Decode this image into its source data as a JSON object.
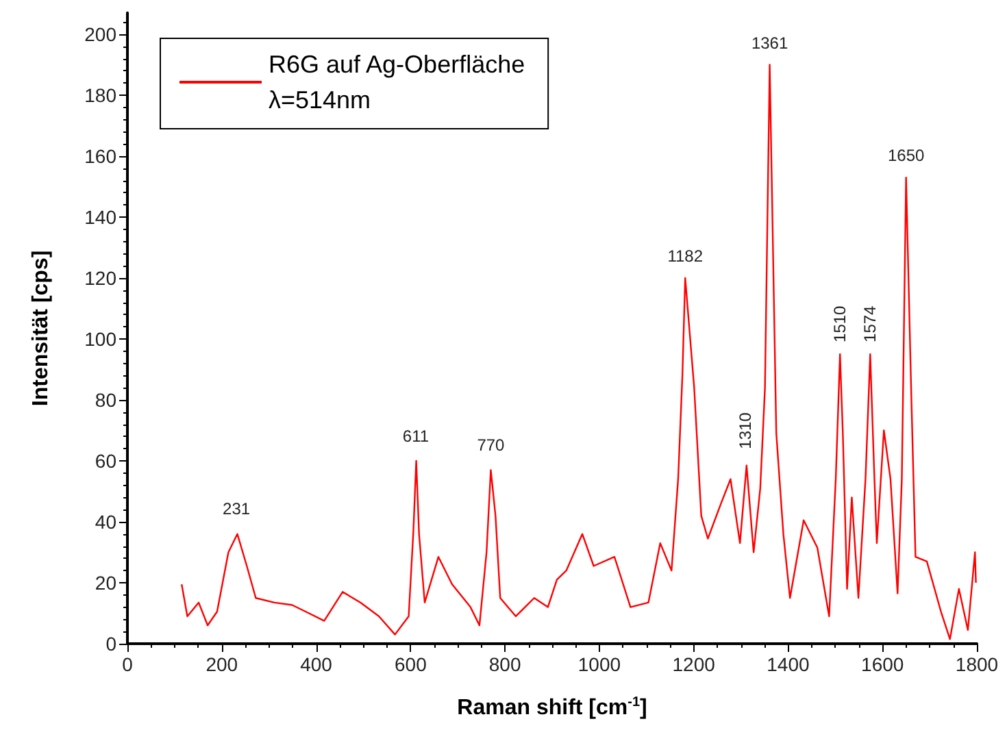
{
  "chart_data": {
    "type": "line",
    "xlabel": "Raman shift [cm$^{-1}$]",
    "ylabel": "Intensität [cps]",
    "xlim": [
      0,
      1800
    ],
    "ylim": [
      0,
      207
    ],
    "xticks": [
      0,
      200,
      400,
      600,
      800,
      1000,
      1200,
      1400,
      1600,
      1800
    ],
    "yticks": [
      0,
      20,
      40,
      60,
      80,
      100,
      120,
      140,
      160,
      180,
      200
    ],
    "grid": false,
    "legend": "top left",
    "marker": "none",
    "line_style": "solid",
    "series": [
      {
        "name": "R6G auf Ag-Oberfläche\nλ=514nm",
        "color": "#ff0000",
        "x": [
          115,
          127,
          151,
          170,
          190,
          214,
          233,
          253,
          272,
          311,
          349,
          378,
          417,
          456,
          494,
          533,
          567,
          596,
          606,
          612,
          618,
          630,
          659,
          688,
          727,
          746,
          761,
          770,
          780,
          790,
          823,
          862,
          891,
          910,
          930,
          964,
          988,
          1032,
          1066,
          1104,
          1129,
          1153,
          1167,
          1176,
          1182,
          1201,
          1216,
          1230,
          1259,
          1278,
          1298,
          1312,
          1327,
          1341,
          1351,
          1361,
          1375,
          1390,
          1404,
          1433,
          1462,
          1487,
          1501,
          1510,
          1516,
          1525,
          1535,
          1549,
          1564,
          1574,
          1583,
          1588,
          1603,
          1617,
          1632,
          1641,
          1650,
          1661,
          1670,
          1694,
          1724,
          1743,
          1762,
          1781,
          1796,
          1798
        ],
        "values": [
          19.5,
          9,
          13.5,
          6,
          10.5,
          30,
          36,
          25.5,
          15,
          13.5,
          12.7,
          10.5,
          7.5,
          17,
          13.5,
          9,
          3,
          9,
          37,
          60,
          36,
          13.5,
          28.5,
          19.5,
          12,
          6,
          30,
          57,
          42,
          15,
          9,
          15,
          12,
          21,
          24,
          36,
          25.5,
          28.5,
          12,
          13.5,
          33,
          24,
          54,
          88,
          120,
          84,
          42,
          34.5,
          46.5,
          54,
          33,
          58.5,
          30,
          51,
          84,
          190,
          69,
          36,
          15,
          40.5,
          31.5,
          9,
          54,
          95,
          69,
          18,
          48,
          15,
          54,
          95,
          54,
          33,
          70,
          54,
          16.5,
          54,
          153,
          82,
          28.5,
          27,
          10.5,
          1.5,
          18,
          4.5,
          30,
          20
        ]
      }
    ],
    "annotations": [
      {
        "text": "231",
        "x": 231,
        "y": 37
      },
      {
        "text": "611",
        "x": 611,
        "y": 61
      },
      {
        "text": "770",
        "x": 770,
        "y": 58
      },
      {
        "text": "1182",
        "x": 1182,
        "y": 120
      },
      {
        "text": "1310",
        "x": 1310,
        "y": 60
      },
      {
        "text": "1361",
        "x": 1361,
        "y": 190
      },
      {
        "text": "1510",
        "x": 1510,
        "y": 95
      },
      {
        "text": "1574",
        "x": 1574,
        "y": 95
      },
      {
        "text": "1650",
        "x": 1650,
        "y": 153
      }
    ]
  }
}
